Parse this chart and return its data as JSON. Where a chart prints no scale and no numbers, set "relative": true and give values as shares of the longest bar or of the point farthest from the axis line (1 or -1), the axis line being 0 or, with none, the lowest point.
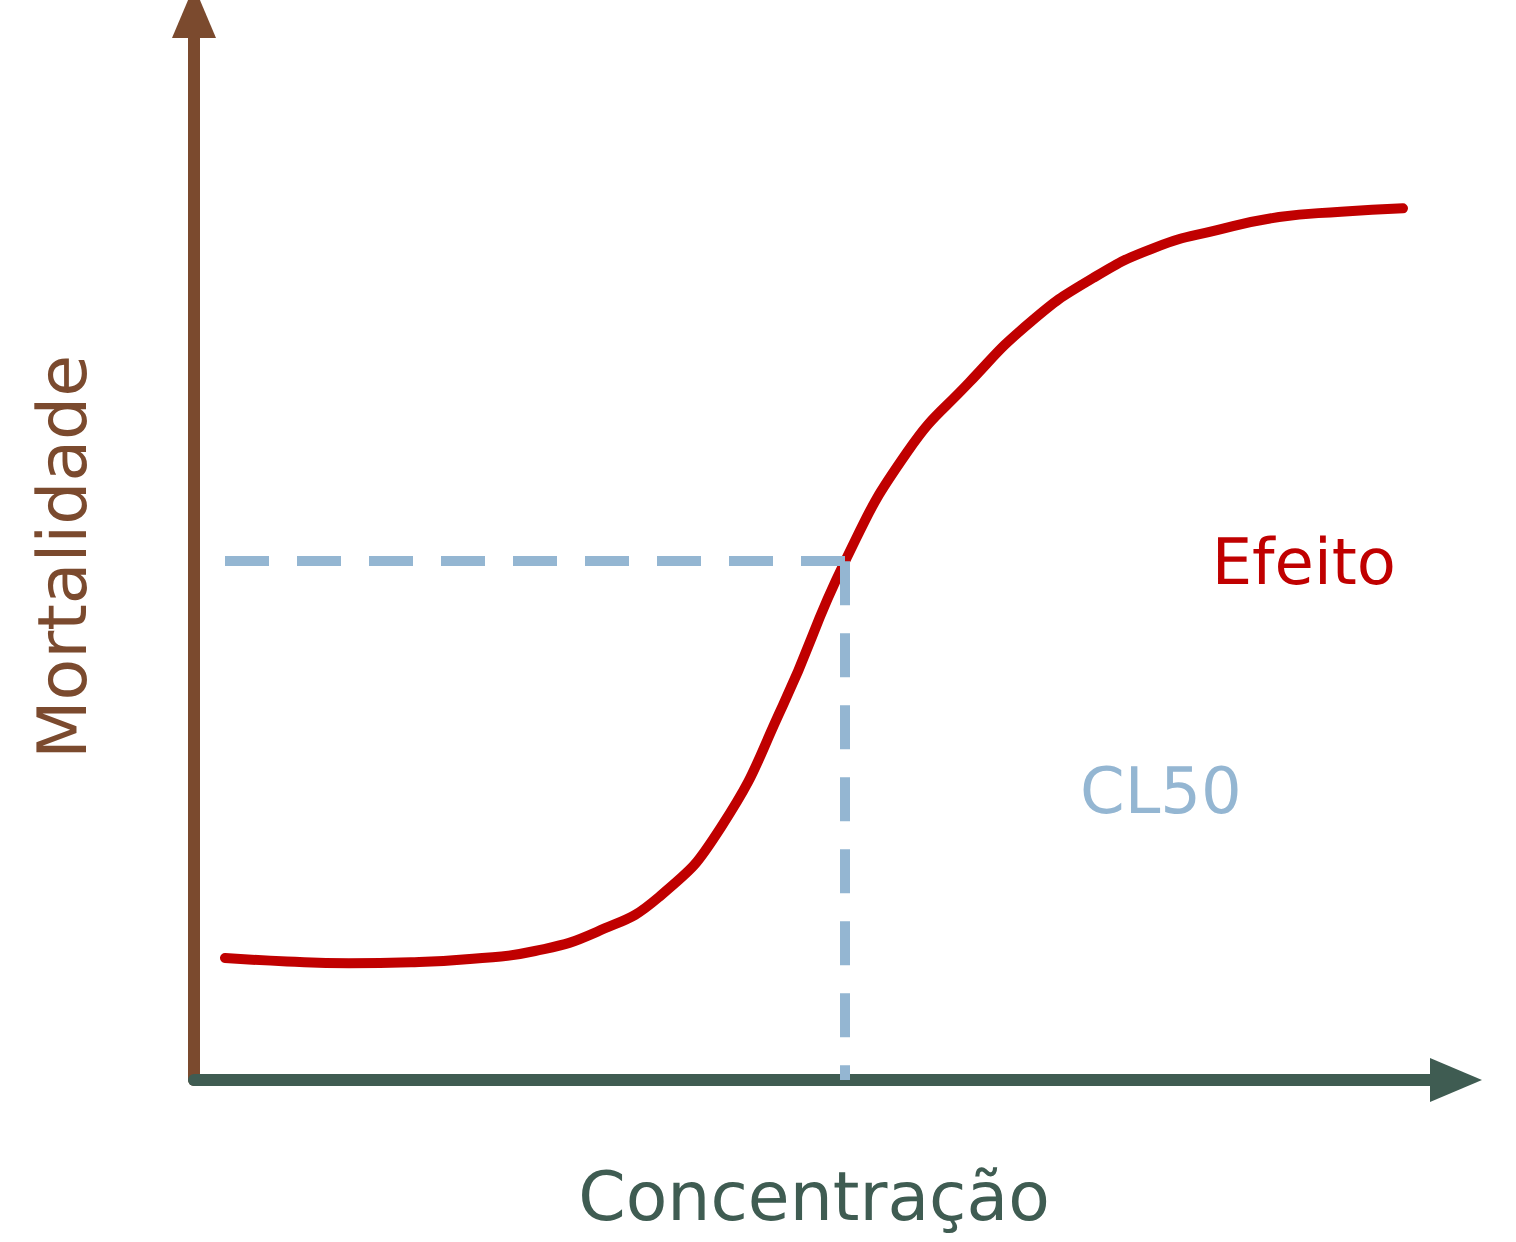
{
  "chart_data": {
    "type": "line",
    "relative": true,
    "xlabel": "Concentração",
    "ylabel": "Mortalidade",
    "grid": false,
    "legend": false,
    "marker": "none",
    "line_style": "solid",
    "categories": [
      null,
      null,
      null,
      null,
      null,
      null,
      null,
      null,
      null,
      null,
      null,
      null,
      null,
      null,
      null,
      null,
      null,
      null,
      null,
      null
    ],
    "series": [
      {
        "name": "Efeito",
        "color": "#c00000",
        "values": [
          0.14,
          0.136,
          0.134,
          0.135,
          0.139,
          0.148,
          0.17,
          0.21,
          0.29,
          0.43,
          0.595,
          0.72,
          0.8,
          0.87,
          0.92,
          0.955,
          0.975,
          0.99,
          0.996,
          1
        ]
      }
    ],
    "ref_lines": [
      {
        "axis": "y",
        "value": 0.595,
        "label": "CL50",
        "color": "#94b6d2",
        "line_style": "dashed"
      }
    ]
  }
}
